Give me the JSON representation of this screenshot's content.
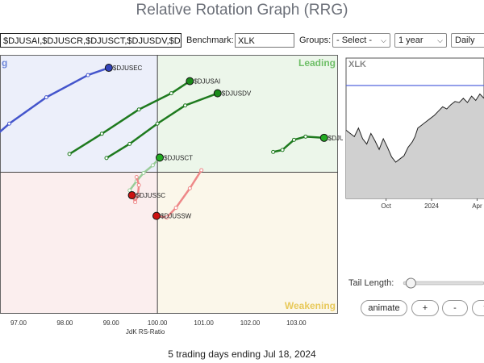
{
  "page": {
    "title": "Relative Rotation Graph (RRG)",
    "footer": "5 trading days ending Jul 18, 2024"
  },
  "toolbar": {
    "symbols_value": "$DJUSAI,$DJUSCR,$DJUSCT,$DJUSDV,$DJ",
    "benchmark_label": "Benchmark:",
    "benchmark_value": "XLK",
    "groups_label": "Groups:",
    "groups_value": "- Select -",
    "period_value": "1 year",
    "frequency_value": "Daily"
  },
  "controls": {
    "tail_length_label": "Tail Length:",
    "tail_length_fraction": 0.08,
    "animate_label": "animate",
    "plus_label": "+",
    "minus_label": "-",
    "cut_label": "f"
  },
  "chart_data": [
    {
      "type": "scatter",
      "title": "",
      "xlabel": "JdK RS-Ratio",
      "ylabel": "",
      "xlim": [
        96.6,
        103.9
      ],
      "ylim": [
        96.5,
        102.9
      ],
      "center": [
        100,
        100
      ],
      "x_ticks": [
        "97.00",
        "98.00",
        "99.00",
        "100.00",
        "101.00",
        "102.00",
        "103.00"
      ],
      "quadrants": {
        "top_left": {
          "label": "g",
          "color": "#eceffa",
          "label_color": "#6d86d9"
        },
        "top_right": {
          "label": "Leading",
          "color": "#ecf6ea",
          "label_color": "#6fbf68"
        },
        "bottom_left": {
          "label": "",
          "color": "#fbeeee",
          "label_color": "#d98080"
        },
        "bottom_right": {
          "label": "Weakening",
          "color": "#fbf7ea",
          "label_color": "#e8c95a"
        }
      },
      "series": [
        {
          "name": "$DJUSEC",
          "color": "#4455cc",
          "head_color": "#3344bb",
          "points": [
            [
              96.5,
              100.9
            ],
            [
              96.8,
              101.2
            ],
            [
              97.6,
              101.85
            ],
            [
              98.5,
              102.4
            ],
            [
              98.95,
              102.58
            ]
          ]
        },
        {
          "name": "$DJUSAI",
          "color": "#1e7a1e",
          "head_color": "#1a8a1a",
          "points": [
            [
              98.1,
              100.45
            ],
            [
              98.8,
              100.95
            ],
            [
              99.6,
              101.55
            ],
            [
              100.3,
              101.95
            ],
            [
              100.7,
              102.25
            ]
          ]
        },
        {
          "name": "$DJUSDV",
          "color": "#1e7a1e",
          "head_color": "#1a8a1a",
          "points": [
            [
              98.9,
              100.35
            ],
            [
              99.4,
              100.7
            ],
            [
              100.0,
              101.2
            ],
            [
              100.6,
              101.65
            ],
            [
              101.3,
              101.95
            ]
          ]
        },
        {
          "name": "$DJUSCT",
          "color": "#99cc99",
          "head_color": "#22aa22",
          "points": [
            [
              99.4,
              99.55
            ],
            [
              99.55,
              99.78
            ],
            [
              99.7,
              99.98
            ],
            [
              99.9,
              100.17
            ],
            [
              100.05,
              100.36
            ]
          ]
        },
        {
          "name": "$DJUSCR",
          "color": "#1e7a1e",
          "head_color": "#22aa22",
          "points": [
            [
              102.5,
              100.5
            ],
            [
              102.7,
              100.55
            ],
            [
              102.95,
              100.8
            ],
            [
              103.2,
              100.88
            ],
            [
              103.6,
              100.85
            ]
          ]
        },
        {
          "name": "$DJUSSC",
          "color": "#ee8888",
          "head_color": "#cc1111",
          "points": [
            [
              99.55,
              99.88
            ],
            [
              99.6,
              99.68
            ],
            [
              99.58,
              99.44
            ],
            [
              99.52,
              99.26
            ],
            [
              99.45,
              99.43
            ]
          ]
        },
        {
          "name": "$DJUSSW",
          "color": "#ee8888",
          "head_color": "#cc1111",
          "points": [
            [
              100.95,
              100.05
            ],
            [
              100.7,
              99.6
            ],
            [
              100.4,
              99.12
            ],
            [
              100.2,
              98.88
            ],
            [
              99.98,
              98.92
            ]
          ]
        }
      ]
    },
    {
      "type": "line",
      "title": "XLK",
      "x_ticks": [
        "Oct",
        "2024",
        "Apr"
      ],
      "x": [
        0,
        0.03,
        0.06,
        0.09,
        0.12,
        0.15,
        0.18,
        0.21,
        0.24,
        0.27,
        0.3,
        0.33,
        0.36,
        0.39,
        0.42,
        0.45,
        0.48,
        0.5,
        0.52,
        0.55,
        0.58,
        0.61,
        0.64,
        0.67,
        0.7,
        0.73,
        0.76,
        0.79,
        0.82,
        0.85,
        0.88,
        0.91,
        0.94,
        0.97,
        1.0
      ],
      "values": [
        0.58,
        0.55,
        0.52,
        0.6,
        0.5,
        0.45,
        0.55,
        0.48,
        0.4,
        0.5,
        0.42,
        0.33,
        0.28,
        0.31,
        0.34,
        0.42,
        0.47,
        0.52,
        0.6,
        0.63,
        0.66,
        0.69,
        0.72,
        0.76,
        0.8,
        0.78,
        0.82,
        0.85,
        0.84,
        0.88,
        0.84,
        0.9,
        0.86,
        0.92,
        0.88
      ],
      "ylim": [
        0,
        1
      ],
      "reference_line": 1.0,
      "line_color": "#222222",
      "fill_color": "#d0d0d0",
      "ref_color": "#5566dd"
    }
  ]
}
